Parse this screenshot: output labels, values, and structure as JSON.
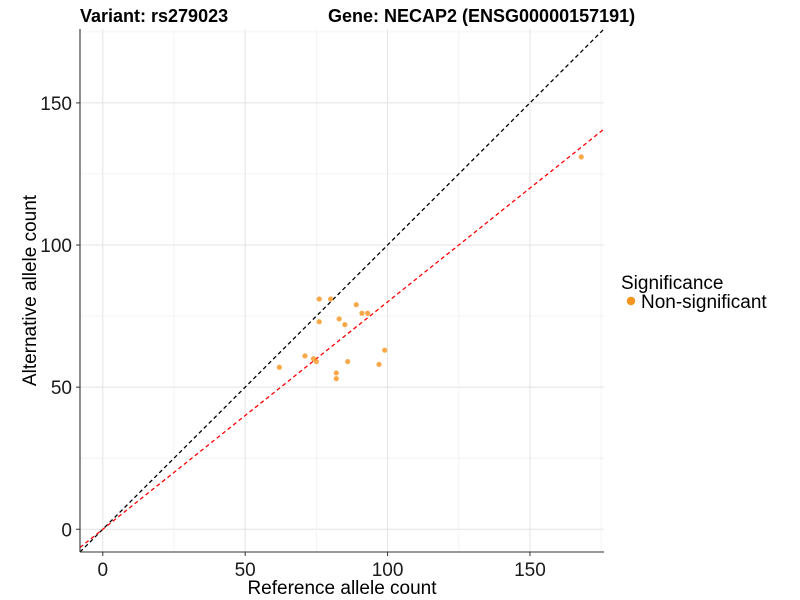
{
  "chart_data": {
    "type": "scatter",
    "title_left": "Variant: rs279023",
    "title_right": "Gene: NECAP2 (ENSG00000157191)",
    "xlabel": "Reference allele count",
    "ylabel": "Alternative allele count",
    "xlim": [
      -8,
      176
    ],
    "ylim": [
      -8,
      176
    ],
    "xticks": [
      0,
      50,
      100,
      150
    ],
    "yticks": [
      0,
      50,
      100,
      150
    ],
    "grid": true,
    "reference_lines": [
      {
        "name": "identity",
        "slope": 1.0,
        "intercept": 0,
        "color": "#000000",
        "style": "dashed"
      },
      {
        "name": "fit",
        "slope": 0.8,
        "intercept": 0,
        "color": "#ff0000",
        "style": "dashed"
      }
    ],
    "series": [
      {
        "name": "Non-significant",
        "color": "#f7941d",
        "points": [
          {
            "x": 62,
            "y": 57
          },
          {
            "x": 71,
            "y": 61
          },
          {
            "x": 74,
            "y": 60
          },
          {
            "x": 75,
            "y": 59
          },
          {
            "x": 76,
            "y": 81
          },
          {
            "x": 76,
            "y": 73
          },
          {
            "x": 80,
            "y": 81
          },
          {
            "x": 82,
            "y": 55
          },
          {
            "x": 82,
            "y": 53
          },
          {
            "x": 83,
            "y": 74
          },
          {
            "x": 85,
            "y": 72
          },
          {
            "x": 86,
            "y": 59
          },
          {
            "x": 89,
            "y": 79
          },
          {
            "x": 91,
            "y": 76
          },
          {
            "x": 93,
            "y": 76
          },
          {
            "x": 97,
            "y": 58
          },
          {
            "x": 99,
            "y": 63
          },
          {
            "x": 168,
            "y": 131
          }
        ]
      }
    ],
    "legend": {
      "title": "Significance",
      "position": "right",
      "entries": [
        {
          "label": "Non-significant",
          "color": "#f7941d"
        }
      ]
    }
  }
}
